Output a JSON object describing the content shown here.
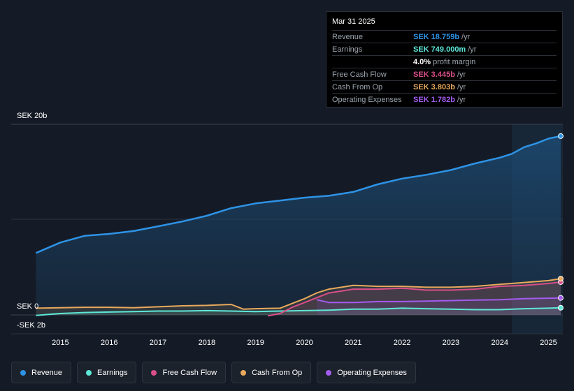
{
  "tooltip": {
    "date": "Mar 31 2025",
    "rows": [
      {
        "label": "Revenue",
        "value": "SEK 18.759b",
        "unit": "/yr",
        "color": "#2e93e6"
      },
      {
        "label": "Earnings",
        "value": "SEK 749.000m",
        "unit": "/yr",
        "color": "#5ee8d8"
      },
      {
        "label": "",
        "value": "4.0%",
        "unit": "profit margin",
        "color": "#ffffff"
      },
      {
        "label": "Free Cash Flow",
        "value": "SEK 3.445b",
        "unit": "/yr",
        "color": "#d94f88"
      },
      {
        "label": "Cash From Op",
        "value": "SEK 3.803b",
        "unit": "/yr",
        "color": "#e8a95c"
      },
      {
        "label": "Operating Expenses",
        "value": "SEK 1.782b",
        "unit": "/yr",
        "color": "#a35cf0"
      }
    ]
  },
  "chart_data": {
    "type": "line",
    "title": "",
    "y_labels": {
      "top": "SEK 20b",
      "zero": "SEK 0",
      "bottom": "-SEK 2b"
    },
    "ylim": [
      -2,
      20
    ],
    "xlim": [
      2014.45,
      2025.25
    ],
    "x_ticks": [
      "2015",
      "2016",
      "2017",
      "2018",
      "2019",
      "2020",
      "2021",
      "2022",
      "2023",
      "2024",
      "2025"
    ],
    "highlight_start": 2024.25,
    "series": [
      {
        "name": "Revenue",
        "color": "#2e93e6",
        "fill": true,
        "x": [
          2014.5,
          2015.0,
          2015.5,
          2016.0,
          2016.5,
          2017.0,
          2017.5,
          2018.0,
          2018.5,
          2019.0,
          2019.5,
          2020.0,
          2020.5,
          2021.0,
          2021.5,
          2022.0,
          2022.5,
          2023.0,
          2023.5,
          2024.0,
          2024.25,
          2024.5,
          2024.75,
          2025.0,
          2025.25
        ],
        "values": [
          6.5,
          7.6,
          8.3,
          8.5,
          8.8,
          9.3,
          9.8,
          10.4,
          11.2,
          11.7,
          12.0,
          12.3,
          12.5,
          12.9,
          13.7,
          14.3,
          14.7,
          15.2,
          15.9,
          16.5,
          16.9,
          17.6,
          18.0,
          18.5,
          18.76
        ]
      },
      {
        "name": "Earnings",
        "color": "#5ee8d8",
        "x": [
          2014.5,
          2015.0,
          2015.5,
          2016.0,
          2016.5,
          2017.0,
          2017.5,
          2018.0,
          2018.5,
          2019.0,
          2019.5,
          2020.0,
          2020.5,
          2021.0,
          2021.5,
          2022.0,
          2022.5,
          2023.0,
          2023.5,
          2024.0,
          2024.5,
          2025.0,
          2025.25
        ],
        "values": [
          -0.05,
          0.15,
          0.25,
          0.3,
          0.35,
          0.4,
          0.4,
          0.45,
          0.4,
          0.35,
          0.4,
          0.45,
          0.5,
          0.6,
          0.6,
          0.7,
          0.65,
          0.6,
          0.55,
          0.55,
          0.65,
          0.7,
          0.749
        ]
      },
      {
        "name": "Free Cash Flow",
        "color": "#d94f88",
        "x": [
          2019.25,
          2019.5,
          2019.75,
          2020.0,
          2020.25,
          2020.5,
          2021.0,
          2021.5,
          2022.0,
          2022.5,
          2023.0,
          2023.5,
          2024.0,
          2024.5,
          2025.0,
          2025.25
        ],
        "values": [
          -0.1,
          0.15,
          0.8,
          1.3,
          1.8,
          2.3,
          2.7,
          2.7,
          2.8,
          2.6,
          2.6,
          2.7,
          3.0,
          3.1,
          3.3,
          3.445
        ]
      },
      {
        "name": "Cash From Op",
        "color": "#e8a95c",
        "x": [
          2014.5,
          2015.0,
          2015.5,
          2016.0,
          2016.5,
          2017.0,
          2017.5,
          2018.0,
          2018.5,
          2018.75,
          2019.0,
          2019.5,
          2019.75,
          2020.0,
          2020.25,
          2020.5,
          2021.0,
          2021.5,
          2022.0,
          2022.5,
          2023.0,
          2023.5,
          2024.0,
          2024.5,
          2025.0,
          2025.25
        ],
        "values": [
          0.7,
          0.75,
          0.8,
          0.8,
          0.75,
          0.85,
          0.95,
          1.0,
          1.1,
          0.6,
          0.65,
          0.7,
          1.2,
          1.7,
          2.3,
          2.7,
          3.1,
          3.0,
          3.0,
          2.9,
          2.9,
          3.0,
          3.2,
          3.4,
          3.6,
          3.803
        ]
      },
      {
        "name": "Operating Expenses",
        "color": "#a35cf0",
        "x": [
          2020.25,
          2020.5,
          2021.0,
          2021.5,
          2022.0,
          2022.5,
          2023.0,
          2023.5,
          2024.0,
          2024.5,
          2025.0,
          2025.25
        ],
        "values": [
          1.6,
          1.3,
          1.3,
          1.4,
          1.4,
          1.45,
          1.5,
          1.55,
          1.6,
          1.7,
          1.75,
          1.782
        ]
      }
    ]
  },
  "legend": [
    {
      "label": "Revenue",
      "color": "#2e93e6"
    },
    {
      "label": "Earnings",
      "color": "#5ee8d8"
    },
    {
      "label": "Free Cash Flow",
      "color": "#d94f88"
    },
    {
      "label": "Cash From Op",
      "color": "#e8a95c"
    },
    {
      "label": "Operating Expenses",
      "color": "#a35cf0"
    }
  ]
}
